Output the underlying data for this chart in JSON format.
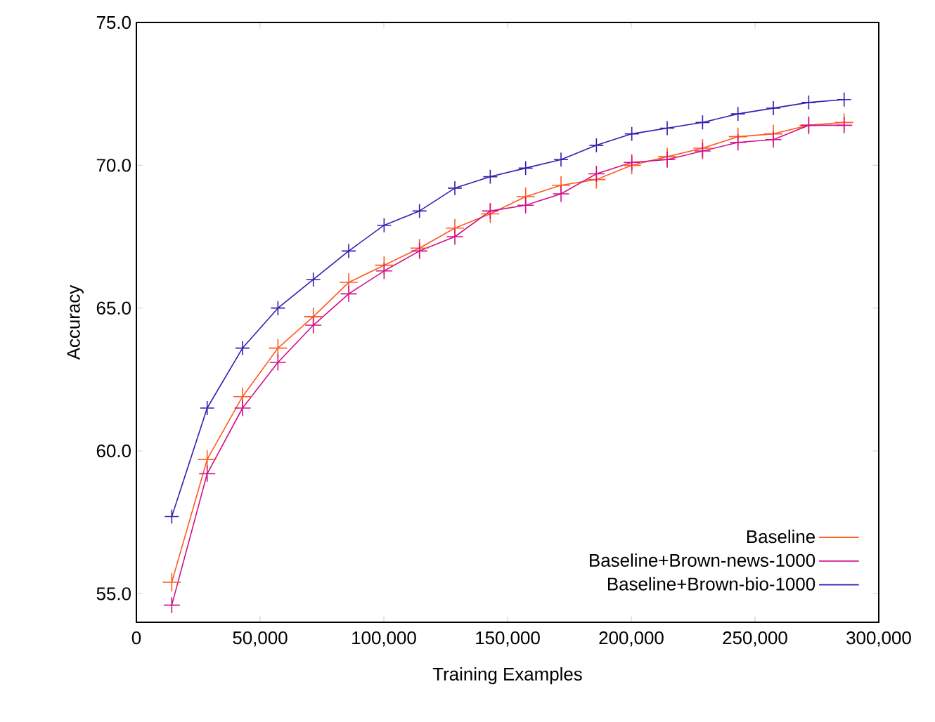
{
  "chart_data": {
    "type": "line",
    "xlabel": "Training Examples",
    "ylabel": "Accuracy",
    "x": [
      14300,
      28600,
      42900,
      57200,
      71500,
      85800,
      100100,
      114400,
      128700,
      143000,
      157300,
      171600,
      185900,
      200200,
      214500,
      228800,
      243100,
      257400,
      271700,
      286000
    ],
    "series": [
      {
        "name": "Baseline",
        "color": "#ff5a1f",
        "values": [
          55.4,
          59.7,
          61.9,
          63.6,
          64.7,
          65.9,
          66.5,
          67.1,
          67.8,
          68.3,
          68.9,
          69.3,
          69.5,
          70.0,
          70.3,
          70.6,
          71.0,
          71.1,
          71.4,
          71.5
        ]
      },
      {
        "name": "Baseline+Brown-news-1000",
        "color": "#d0108a",
        "values": [
          54.6,
          59.2,
          61.5,
          63.1,
          64.4,
          65.5,
          66.3,
          67.0,
          67.5,
          68.4,
          68.6,
          69.0,
          69.7,
          70.1,
          70.2,
          70.5,
          70.8,
          70.9,
          71.4,
          71.4
        ]
      },
      {
        "name": "Baseline+Brown-bio-1000",
        "color": "#3020b0",
        "values": [
          57.7,
          61.5,
          63.6,
          65.0,
          66.0,
          67.0,
          67.9,
          68.4,
          69.2,
          69.6,
          69.9,
          70.2,
          70.7,
          71.1,
          71.3,
          71.5,
          71.8,
          72.0,
          72.2,
          72.3
        ]
      }
    ],
    "xlim": [
      0,
      300000
    ],
    "ylim": [
      54,
      75
    ],
    "xticks": [
      0,
      {
        "value": 50000,
        "label": "50,000"
      },
      {
        "value": 100000,
        "label": "100,000"
      },
      {
        "value": 150000,
        "label": "150,000"
      },
      {
        "value": 200000,
        "label": "200,000"
      },
      {
        "value": 250000,
        "label": "250,000"
      },
      {
        "value": 300000,
        "label": "300,000"
      }
    ],
    "yticks": [
      {
        "value": 55,
        "label": "55.0"
      },
      {
        "value": 60,
        "label": "60.0"
      },
      {
        "value": 65,
        "label": "65.0"
      },
      {
        "value": 70,
        "label": "70.0"
      },
      {
        "value": 75,
        "label": "75.0"
      }
    ],
    "grid": false,
    "legend": "bottom right",
    "marker": "cross",
    "line_style": "solid"
  }
}
